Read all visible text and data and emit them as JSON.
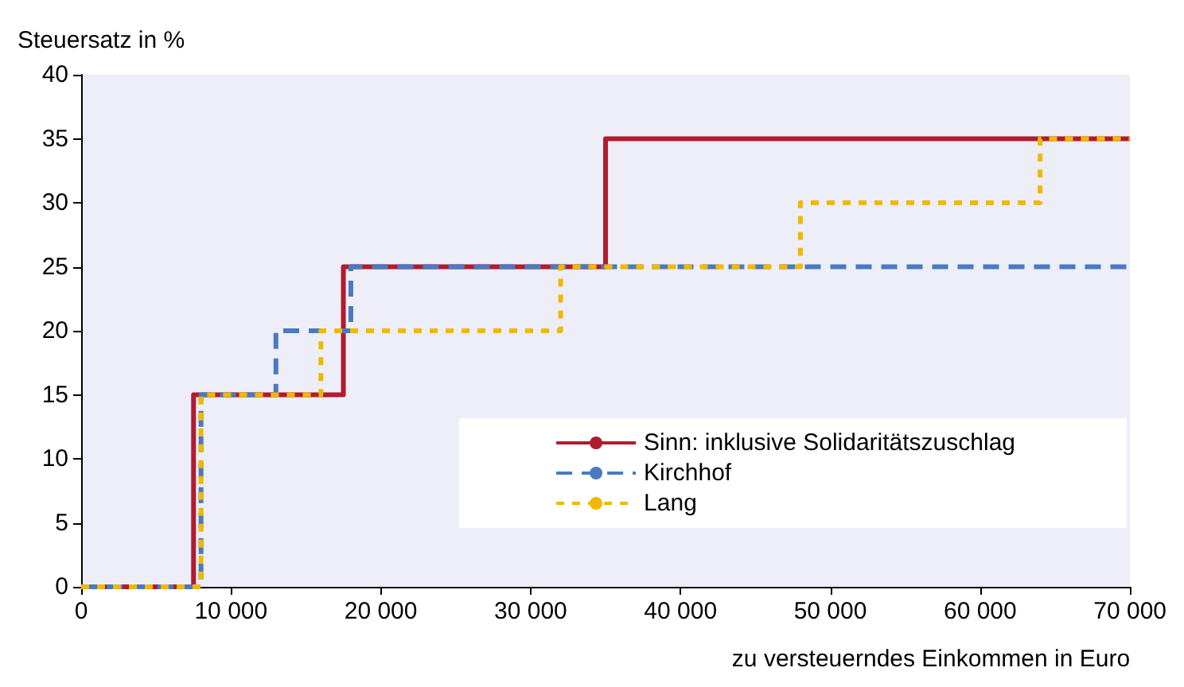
{
  "chart_data": {
    "type": "step",
    "ylabel": "Steuersatz in %",
    "xlabel": "zu versteuerndes Einkommen in Euro",
    "xlim": [
      0,
      70000
    ],
    "xticks": [
      0,
      {
        "value": 10000,
        "label": "10 000"
      },
      {
        "value": 20000,
        "label": "20 000"
      },
      {
        "value": 30000,
        "label": "30 000"
      },
      {
        "value": 40000,
        "label": "40 000"
      },
      {
        "value": 50000,
        "label": "50 000"
      },
      {
        "value": 60000,
        "label": "60 000"
      },
      {
        "value": 70000,
        "label": "70 000"
      }
    ],
    "ylim": [
      0,
      40
    ],
    "yticks": [
      0,
      5,
      10,
      15,
      20,
      25,
      30,
      35,
      40
    ],
    "grid": false,
    "legend": "bottom right",
    "marker": "none",
    "series": [
      {
        "name": "Sinn: inklusive Solidaritätszuschlag",
        "color": "#b01c2e",
        "line_style": "solid",
        "x": [
          0,
          7500,
          17500,
          35000,
          70000
        ],
        "values": [
          0,
          15,
          25,
          35,
          35
        ]
      },
      {
        "name": "Kirchhof",
        "color": "#4a7ac0",
        "line_style": "dashed",
        "x": [
          0,
          8000,
          13000,
          18000,
          70000
        ],
        "values": [
          0,
          15,
          20,
          25,
          25
        ]
      },
      {
        "name": "Lang",
        "color": "#f0b800",
        "line_style": "dotted",
        "x": [
          0,
          8000,
          16000,
          32000,
          48000,
          64000,
          70000
        ],
        "values": [
          0,
          15,
          20,
          25,
          30,
          35,
          35
        ]
      }
    ]
  }
}
